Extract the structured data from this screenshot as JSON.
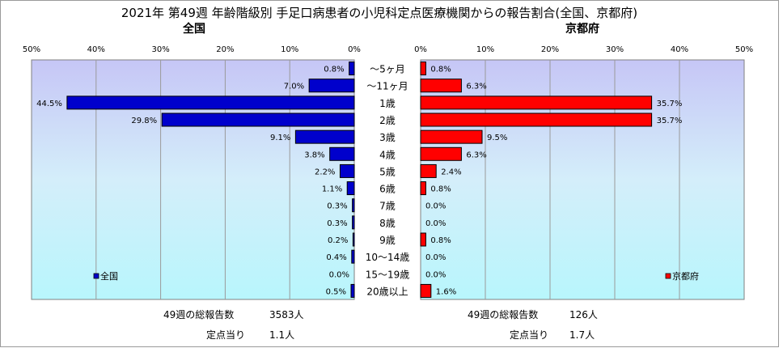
{
  "chart_data": {
    "type": "bar",
    "title": "2021年 第49週 年齢階級別 手足口病患者の小児科定点医療機関からの報告割合(全国、京都府)",
    "categories": [
      "～5ヶ月",
      "～11ヶ月",
      "1歳",
      "2歳",
      "3歳",
      "4歳",
      "5歳",
      "6歳",
      "7歳",
      "8歳",
      "9歳",
      "10～14歳",
      "15～19歳",
      "20歳以上"
    ],
    "xlim": [
      0,
      50
    ],
    "ticks": [
      "0%",
      "10%",
      "20%",
      "30%",
      "40%",
      "50%"
    ],
    "series": [
      {
        "name": "全国",
        "color": "#0000cc",
        "values": [
          0.8,
          7.0,
          44.5,
          29.8,
          9.1,
          3.8,
          2.2,
          1.1,
          0.3,
          0.3,
          0.2,
          0.4,
          0.0,
          0.5
        ],
        "labels": [
          "0.8%",
          "7.0%",
          "44.5%",
          "29.8%",
          "9.1%",
          "3.8%",
          "2.2%",
          "1.1%",
          "0.3%",
          "0.3%",
          "0.2%",
          "0.4%",
          "0.0%",
          "0.5%"
        ]
      },
      {
        "name": "京都府",
        "color": "#ff0000",
        "values": [
          0.8,
          6.3,
          35.7,
          35.7,
          9.5,
          6.3,
          2.4,
          0.8,
          0.0,
          0.0,
          0.8,
          0.0,
          0.0,
          1.6
        ],
        "labels": [
          "0.8%",
          "6.3%",
          "35.7%",
          "35.7%",
          "9.5%",
          "6.3%",
          "2.4%",
          "0.8%",
          "0.0%",
          "0.0%",
          "0.8%",
          "0.0%",
          "0.0%",
          "1.6%"
        ]
      }
    ],
    "panels": {
      "left_title": "全国",
      "right_title": "京都府"
    },
    "legend": {
      "left": "全国",
      "right": "京都府"
    },
    "footer": {
      "left": {
        "total_label": "49週の総報告数",
        "total_value": "3583人",
        "per_label": "定点当り",
        "per_value": "1.1人"
      },
      "right": {
        "total_label": "49週の総報告数",
        "total_value": "126人",
        "per_label": "定点当り",
        "per_value": "1.7人"
      }
    },
    "grid": true
  }
}
